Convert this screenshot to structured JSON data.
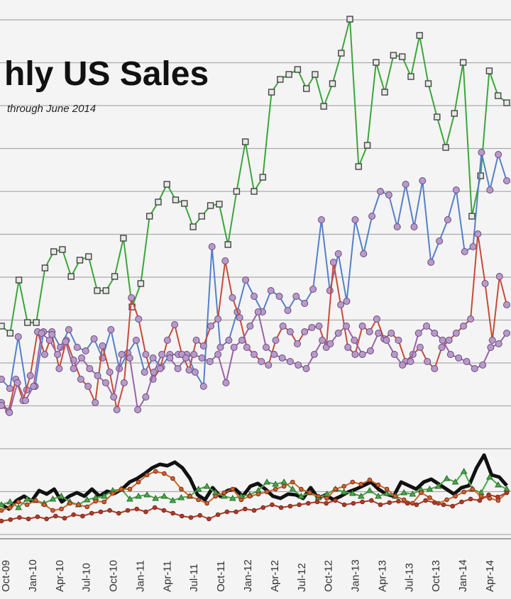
{
  "chart_data": {
    "type": "line",
    "title": "hly US Sales",
    "subtitle": "through June 2014",
    "xlabel": "",
    "ylabel": "",
    "grid": true,
    "x_tick_labels": [
      "Oct-09",
      "Jan-10",
      "Apr-10",
      "Jul-10",
      "Oct-10",
      "Jan-11",
      "Apr-11",
      "Jul-11",
      "Oct-11",
      "Jan-12",
      "Apr-12",
      "Jul-12",
      "Oct-12",
      "Jan-13",
      "Apr-13",
      "Jul-13",
      "Oct-13",
      "Jan-14",
      "Apr-14"
    ],
    "series": [
      {
        "color": "#3aa63a",
        "marker": "square",
        "values": [
          460,
          470,
          395,
          455,
          455,
          378,
          355,
          352,
          390,
          367,
          362,
          410,
          410,
          390,
          336,
          433,
          400,
          305,
          285,
          260,
          282,
          287,
          320,
          305,
          290,
          288,
          345,
          270,
          200,
          270,
          250,
          130,
          112,
          105,
          98,
          125,
          105,
          150,
          118,
          75,
          27,
          235,
          205,
          88,
          130,
          78,
          80,
          108,
          50,
          118,
          165,
          208,
          160,
          88,
          305,
          248,
          100,
          135,
          145
        ]
      },
      {
        "color": "#5580c8",
        "marker": "circle",
        "values": [
          535,
          548,
          475,
          550,
          545,
          468,
          468,
          490,
          465,
          490,
          495,
          478,
          505,
          465,
          520,
          498,
          480,
          525,
          505,
          518,
          500,
          500,
          500,
          525,
          545,
          348,
          490,
          480,
          440,
          395,
          418,
          440,
          410,
          418,
          438,
          418,
          428,
          408,
          310,
          410,
          358,
          425,
          310,
          358,
          305,
          270,
          275,
          320,
          260,
          320,
          255,
          370,
          340,
          310,
          268,
          355,
          348,
          215,
          268,
          218,
          255
        ]
      },
      {
        "color": "#c84a38",
        "marker": "circle",
        "values": [
          568,
          580,
          535,
          565,
          530,
          468,
          500,
          472,
          520,
          480,
          508,
          535,
          545,
          568,
          488,
          525,
          578,
          540,
          420,
          450,
          500,
          535,
          520,
          480,
          458,
          500,
          522,
          480,
          488,
          460,
          450,
          368,
          420,
          448,
          490,
          500,
          510,
          515,
          480,
          460,
          468,
          485,
          468,
          462,
          460,
          490,
          370,
          430,
          490,
          500,
          460,
          468,
          450,
          478,
          470,
          480,
          510,
          500,
          490,
          510,
          520,
          490,
          480,
          470,
          460,
          450,
          330,
          400,
          480,
          390,
          430
        ]
      },
      {
        "color": "#9a62a8",
        "marker": "circle",
        "values": [
          572,
          582,
          540,
          565,
          545,
          470,
          480,
          500,
          482,
          520,
          505,
          520,
          530,
          540,
          560,
          500,
          505,
          578,
          560,
          525,
          500,
          505,
          520,
          505,
          500,
          505,
          510,
          500,
          540,
          490,
          480,
          460,
          440,
          490,
          500,
          505,
          510,
          515,
          520,
          500,
          480,
          485,
          470,
          460,
          480,
          500,
          495,
          470,
          480,
          500,
          515,
          510,
          470,
          460,
          470,
          480,
          500,
          505,
          510,
          520,
          515,
          490,
          485,
          470
        ]
      },
      {
        "color": "#111111",
        "marker": "none",
        "values": [
          712,
          718,
          706,
          700,
          707,
          692,
          697,
          690,
          708,
          700,
          695,
          700,
          690,
          700,
          693,
          696,
          690,
          680,
          675,
          668,
          660,
          655,
          657,
          652,
          660,
          675,
          698,
          705,
          688,
          700,
          692,
          690,
          700,
          686,
          682,
          690,
          700,
          703,
          697,
          698,
          703,
          688,
          703,
          698,
          705,
          700,
          694,
          690,
          685,
          680,
          690,
          697,
          700,
          680,
          685,
          690,
          680,
          676,
          683,
          690,
          697,
          688,
          685,
          660,
          642,
          670,
          673,
          685
        ]
      },
      {
        "color": "#4aa84a",
        "marker": "triangle",
        "values": [
          712,
          708,
          716,
          704,
          706,
          710,
          704,
          700,
          708,
          712,
          705,
          702,
          700,
          692,
          690,
          704,
          700,
          698,
          703,
          700,
          706,
          702,
          700,
          690,
          686,
          695,
          700,
          703,
          700,
          698,
          692,
          680,
          683,
          680,
          690,
          700,
          695,
          702,
          697,
          690,
          694,
          696,
          700,
          692,
          700,
          696,
          700,
          695,
          697,
          691,
          690,
          686,
          675,
          680,
          665,
          690,
          695,
          673,
          684,
          690
        ]
      },
      {
        "color": "#d0642a",
        "marker": "circle",
        "values": [
          720,
          716,
          708,
          712,
          706,
          712,
          720,
          718,
          710,
          712,
          715,
          707,
          708,
          696,
          690,
          690,
          680,
          670,
          665,
          668,
          675,
          690,
          700,
          705,
          710,
          700,
          695,
          690,
          705,
          700,
          697,
          694,
          690,
          686,
          680,
          690,
          695,
          700,
          703,
          690,
          686,
          680,
          683,
          677,
          684,
          690,
          700,
          705,
          710,
          695,
          702,
          710,
          705,
          700,
          694,
          690,
          700,
          703,
          706,
          695
        ]
      },
      {
        "color": "#b03a2a",
        "marker": "circle",
        "values": [
          735,
          733,
          730,
          732,
          729,
          732,
          728,
          731,
          726,
          728,
          724,
          722,
          720,
          724,
          720,
          718,
          722,
          716,
          720,
          724,
          728,
          730,
          727,
          732,
          726,
          722,
          722,
          718,
          720,
          716,
          712,
          716,
          714,
          712,
          710,
          708,
          710,
          706,
          712,
          710,
          708,
          706,
          712,
          709,
          707,
          710,
          712,
          706,
          709,
          712,
          714,
          708,
          704,
          706,
          698,
          701,
          695
        ]
      }
    ]
  }
}
